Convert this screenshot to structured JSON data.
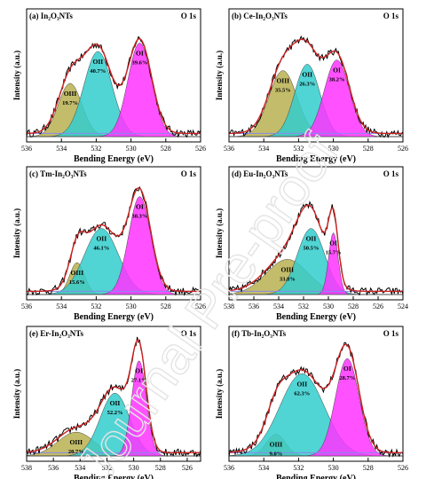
{
  "watermark": "Journal Pre-proof",
  "colors": {
    "OI": "#ff33ff",
    "OII": "#33cccc",
    "OIII": "#b8b050",
    "raw": "#000000",
    "fit": "#cc2222",
    "sum_fill": "#6666dd"
  },
  "axis_label_x": "Bending Energy (eV)",
  "axis_label_y": "Intensity (a.u.)",
  "chart_data": [
    {
      "type": "area",
      "panel": "(a)",
      "sample": "In2O3 NTs",
      "sample_label": "In₂O₃NTs",
      "core_level": "O 1s",
      "xlabel": "Bending Energy (eV)",
      "ylabel": "Intensity (a.u.)",
      "xlim": [
        536,
        526
      ],
      "xticks": [
        536,
        534,
        532,
        530,
        528,
        526
      ],
      "components": [
        {
          "name": "O III",
          "label_text": "OIII",
          "center": 533.5,
          "fwhm": 1.6,
          "height": 0.5,
          "percent": "19.7%"
        },
        {
          "name": "O II",
          "label_text": "OII",
          "center": 531.9,
          "fwhm": 1.9,
          "height": 0.8,
          "percent": "40.7%"
        },
        {
          "name": "O I",
          "label_text": "OI",
          "center": 529.5,
          "fwhm": 1.6,
          "height": 0.88,
          "percent": "39.6%"
        }
      ]
    },
    {
      "type": "area",
      "panel": "(b)",
      "sample": "Ce-In2O3 NTs",
      "sample_label": "Ce-In₂O₃NTs",
      "core_level": "O 1s",
      "xlabel": "Bending Energy (eV)",
      "ylabel": "Intensity (a.u.)",
      "xlim": [
        536,
        526
      ],
      "xticks": [
        536,
        534,
        532,
        530,
        528,
        526
      ],
      "components": [
        {
          "name": "O III",
          "label_text": "OIII",
          "center": 532.9,
          "fwhm": 1.9,
          "height": 0.62,
          "percent": "35.5%"
        },
        {
          "name": "O II",
          "label_text": "OII",
          "center": 531.5,
          "fwhm": 1.7,
          "height": 0.68,
          "percent": "26.3%"
        },
        {
          "name": "O I",
          "label_text": "OI",
          "center": 529.8,
          "fwhm": 1.7,
          "height": 0.72,
          "percent": "38.2%"
        }
      ]
    },
    {
      "type": "area",
      "panel": "(c)",
      "sample": "Tm-In2O3 NTs",
      "sample_label": "Tm-In₂O₃NTs",
      "core_level": "O 1s",
      "xlabel": "Bending Energy (eV)",
      "ylabel": "Intensity (a.u.)",
      "xlim": [
        536,
        526
      ],
      "xticks": [
        536,
        534,
        532,
        530,
        528,
        526
      ],
      "components": [
        {
          "name": "O III",
          "label_text": "OIII",
          "center": 533.1,
          "fwhm": 1.0,
          "height": 0.3,
          "percent": "15.6%"
        },
        {
          "name": "O II",
          "label_text": "OII",
          "center": 531.7,
          "fwhm": 2.3,
          "height": 0.62,
          "percent": "46.1%"
        },
        {
          "name": "O I",
          "label_text": "OI",
          "center": 529.5,
          "fwhm": 1.5,
          "height": 0.92,
          "percent": "38.3%"
        }
      ]
    },
    {
      "type": "area",
      "panel": "(d)",
      "sample": "Eu-In2O3 NTs",
      "sample_label": "Eu-In₂O₃NTs",
      "core_level": "O 1s",
      "xlabel": "Bending Energy (eV)",
      "ylabel": "Intensity (a.u.)",
      "xlim": [
        538,
        524
      ],
      "xticks": [
        538,
        536,
        534,
        532,
        530,
        528,
        526,
        524
      ],
      "components": [
        {
          "name": "O III",
          "label_text": "OIII",
          "center": 533.3,
          "fwhm": 4.0,
          "height": 0.33,
          "percent": "33.8%"
        },
        {
          "name": "O II",
          "label_text": "OII",
          "center": 531.4,
          "fwhm": 2.6,
          "height": 0.62,
          "percent": "50.5%"
        },
        {
          "name": "O I",
          "label_text": "OI",
          "center": 529.6,
          "fwhm": 0.9,
          "height": 0.58,
          "percent": "15.7%"
        }
      ]
    },
    {
      "type": "area",
      "panel": "(e)",
      "sample": "Er-In2O3 NTs",
      "sample_label": "Er-In₂O₃NTs",
      "core_level": "O 1s",
      "xlabel": "Bending Energy (eV)",
      "ylabel": "Intensity (a.u.)",
      "xlim": [
        538,
        525
      ],
      "xticks": [
        538,
        536,
        534,
        532,
        530,
        528,
        526
      ],
      "components": [
        {
          "name": "O III",
          "label_text": "OIII",
          "center": 534.3,
          "fwhm": 3.2,
          "height": 0.22,
          "percent": "20.7%"
        },
        {
          "name": "O II",
          "label_text": "OII",
          "center": 531.4,
          "fwhm": 2.6,
          "height": 0.58,
          "percent": "52.2%"
        },
        {
          "name": "O I",
          "label_text": "OI",
          "center": 529.6,
          "fwhm": 1.3,
          "height": 0.88,
          "percent": "27.1%"
        }
      ]
    },
    {
      "type": "area",
      "panel": "(f)",
      "sample": "Tb-In2O3 NTs",
      "sample_label": "Tb-In₂O₃NTs",
      "core_level": "O 1s",
      "xlabel": "Bending Energy (eV)",
      "ylabel": "Intensity (a.u.)",
      "xlim": [
        536,
        526
      ],
      "xticks": [
        536,
        534,
        532,
        530,
        528,
        526
      ],
      "components": [
        {
          "name": "O III",
          "label_text": "OIII",
          "center": 533.3,
          "fwhm": 1.3,
          "height": 0.2,
          "percent": "9.0%"
        },
        {
          "name": "O II",
          "label_text": "OII",
          "center": 531.8,
          "fwhm": 3.0,
          "height": 0.76,
          "percent": "62.3%"
        },
        {
          "name": "O I",
          "label_text": "OI",
          "center": 529.2,
          "fwhm": 1.6,
          "height": 0.9,
          "percent": "28.7%"
        }
      ]
    }
  ]
}
